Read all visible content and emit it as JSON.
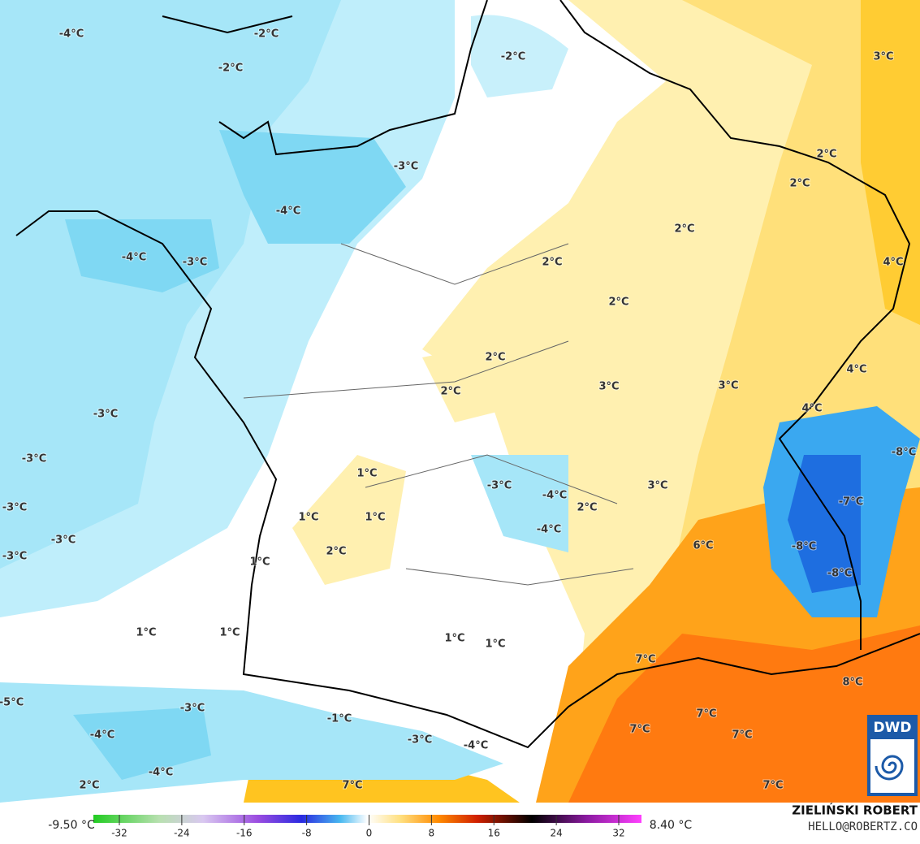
{
  "map": {
    "labels": [
      "-4°C",
      "-2°C",
      "-2°C",
      "-2°C",
      "3°C",
      "-3°C",
      "2°C",
      "2°C",
      "-4°C",
      "2°C",
      "-4°C",
      "-3°C",
      "2°C",
      "4°C",
      "2°C",
      "2°C",
      "4°C",
      "2°C",
      "3°C",
      "3°C",
      "4°C",
      "-3°C",
      "-8°C",
      "-3°C",
      "1°C",
      "-3°C",
      "-4°C",
      "3°C",
      "-3°C",
      "1°C",
      "1°C",
      "2°C",
      "-7°C",
      "-4°C",
      "-3°C",
      "6°C",
      "-8°C",
      "2°C",
      "-3°C",
      "1°C",
      "-8°C",
      "1°C",
      "1°C",
      "1°C",
      "1°C",
      "7°C",
      "8°C",
      "-5°C",
      "-3°C",
      "7°C",
      "-1°C",
      "-4°C",
      "7°C",
      "7°C",
      "-3°C",
      "-4°C",
      "-4°C",
      "2°C",
      "7°C",
      "7°C"
    ],
    "colorbar": {
      "min_label": "-9.50 °C",
      "max_label": "8.40 °C",
      "ticks": [
        -32,
        -24,
        -16,
        -8,
        0,
        8,
        16,
        24,
        32
      ],
      "lim": [
        -32,
        32
      ]
    },
    "credit": {
      "author": "ZIELIŃSKI ROBERT",
      "contact": "HELLO@ROBERTZ.CO"
    },
    "logo": "DWD"
  }
}
